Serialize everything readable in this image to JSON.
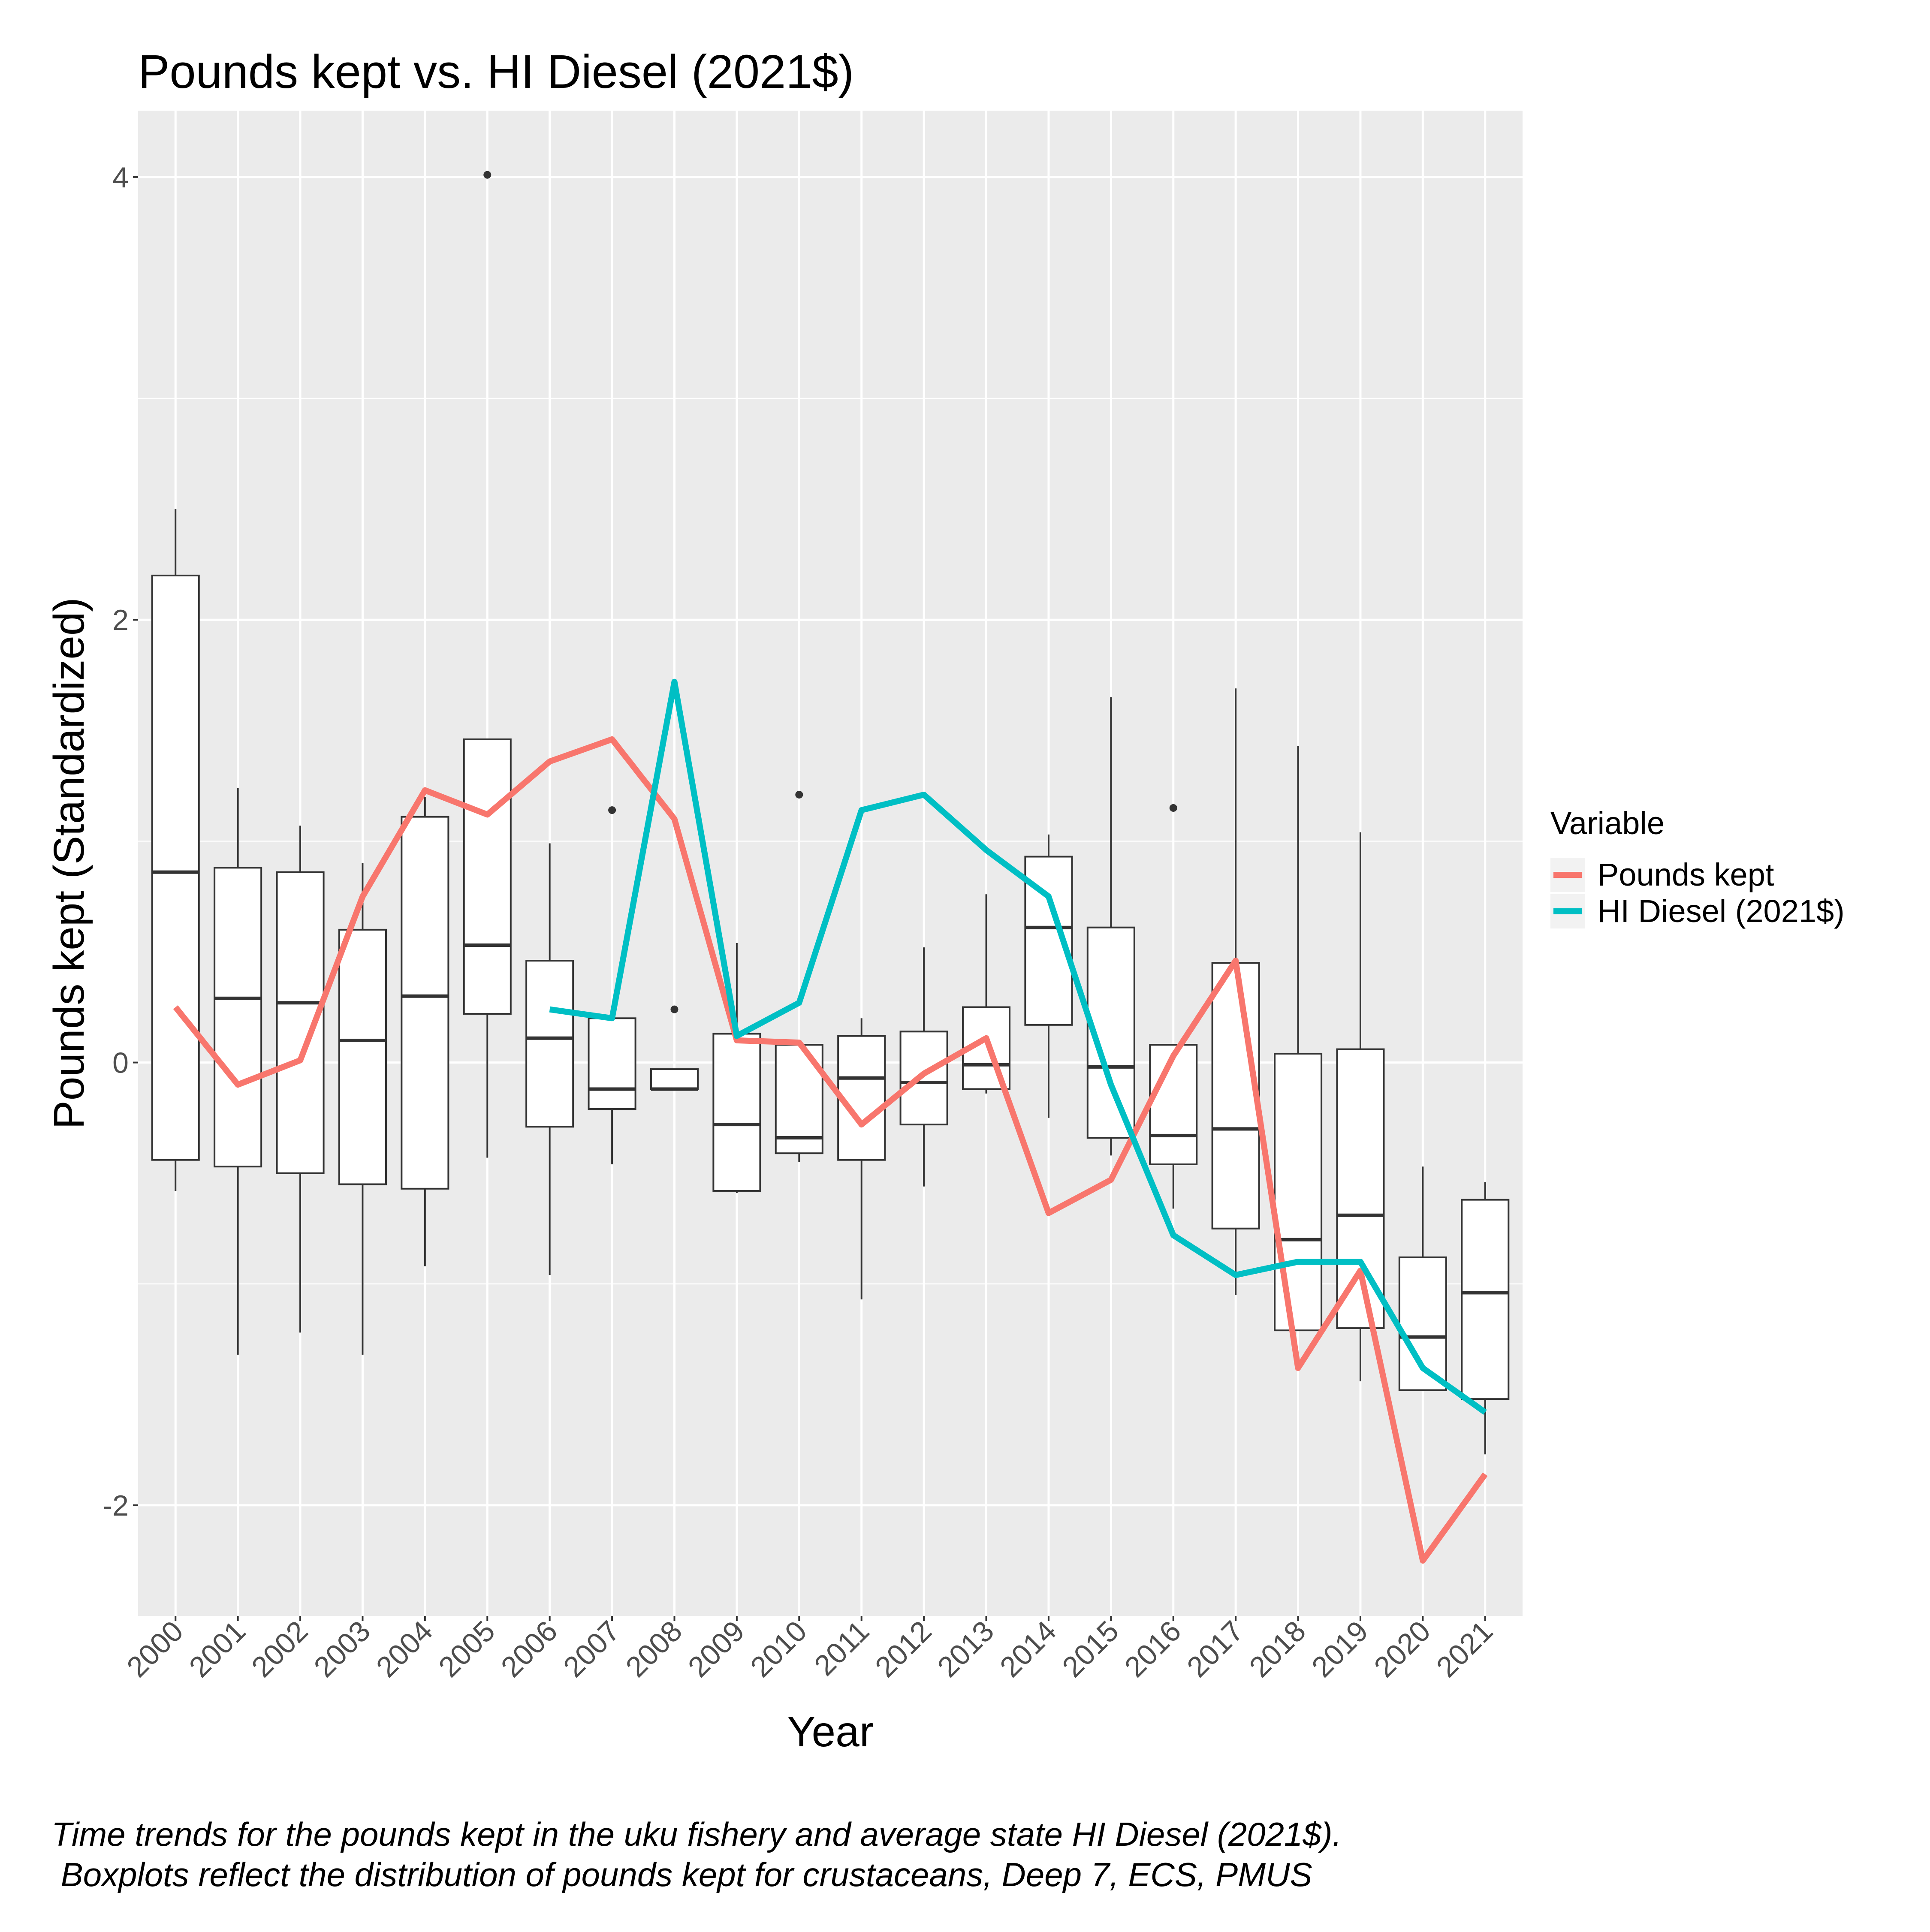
{
  "chart_data": {
    "type": "boxplot+line",
    "title": "Pounds kept vs. HI Diesel (2021$)",
    "xlabel": "Year",
    "ylabel": "Pounds kept (Standardized)",
    "ylim": [
      -2.5,
      4.3
    ],
    "y_ticks": [
      4,
      2,
      0,
      -2
    ],
    "y_tick_labels": [
      "4",
      "2",
      "0",
      "-2"
    ],
    "grid": true,
    "legend_position": "right",
    "legend": {
      "title": "Variable",
      "entries": [
        "Pounds kept",
        "HI Diesel (2021$)"
      ]
    },
    "categories": [
      "2000",
      "2001",
      "2002",
      "2003",
      "2004",
      "2005",
      "2006",
      "2007",
      "2008",
      "2009",
      "2010",
      "2011",
      "2012",
      "2013",
      "2014",
      "2015",
      "2016",
      "2017",
      "2018",
      "2019",
      "2020",
      "2021"
    ],
    "boxes": [
      {
        "year": "2000",
        "lw": -0.58,
        "q1": -0.44,
        "med": 0.86,
        "q3": 2.2,
        "uw": 2.5,
        "outliers": []
      },
      {
        "year": "2001",
        "lw": -1.32,
        "q1": -0.47,
        "med": 0.29,
        "q3": 0.88,
        "uw": 1.24,
        "outliers": []
      },
      {
        "year": "2002",
        "lw": -1.22,
        "q1": -0.5,
        "med": 0.27,
        "q3": 0.86,
        "uw": 1.07,
        "outliers": []
      },
      {
        "year": "2003",
        "lw": -1.32,
        "q1": -0.55,
        "med": 0.1,
        "q3": 0.6,
        "uw": 0.9,
        "outliers": []
      },
      {
        "year": "2004",
        "lw": -0.92,
        "q1": -0.57,
        "med": 0.3,
        "q3": 1.11,
        "uw": 1.2,
        "outliers": []
      },
      {
        "year": "2005",
        "lw": -0.43,
        "q1": 0.22,
        "med": 0.53,
        "q3": 1.46,
        "uw": 1.46,
        "outliers": [
          4.01
        ]
      },
      {
        "year": "2006",
        "lw": -0.96,
        "q1": -0.29,
        "med": 0.11,
        "q3": 0.46,
        "uw": 0.99,
        "outliers": []
      },
      {
        "year": "2007",
        "lw": -0.46,
        "q1": -0.21,
        "med": -0.12,
        "q3": 0.2,
        "uw": 0.2,
        "outliers": [
          1.14
        ]
      },
      {
        "year": "2008",
        "lw": -0.12,
        "q1": -0.12,
        "med": -0.12,
        "q3": -0.03,
        "uw": -0.03,
        "outliers": [
          0.24
        ]
      },
      {
        "year": "2009",
        "lw": -0.59,
        "q1": -0.58,
        "med": -0.28,
        "q3": 0.13,
        "uw": 0.54,
        "outliers": []
      },
      {
        "year": "2010",
        "lw": -0.45,
        "q1": -0.41,
        "med": -0.34,
        "q3": 0.08,
        "uw": 0.08,
        "outliers": [
          1.21
        ]
      },
      {
        "year": "2011",
        "lw": -1.07,
        "q1": -0.44,
        "med": -0.07,
        "q3": 0.12,
        "uw": 0.2,
        "outliers": []
      },
      {
        "year": "2012",
        "lw": -0.56,
        "q1": -0.28,
        "med": -0.09,
        "q3": 0.14,
        "uw": 0.52,
        "outliers": []
      },
      {
        "year": "2013",
        "lw": -0.14,
        "q1": -0.12,
        "med": -0.01,
        "q3": 0.25,
        "uw": 0.76,
        "outliers": []
      },
      {
        "year": "2014",
        "lw": -0.25,
        "q1": 0.17,
        "med": 0.61,
        "q3": 0.93,
        "uw": 1.03,
        "outliers": []
      },
      {
        "year": "2015",
        "lw": -0.42,
        "q1": -0.34,
        "med": -0.02,
        "q3": 0.61,
        "uw": 1.65,
        "outliers": []
      },
      {
        "year": "2016",
        "lw": -0.66,
        "q1": -0.46,
        "med": -0.33,
        "q3": 0.08,
        "uw": 0.08,
        "outliers": [
          1.15
        ]
      },
      {
        "year": "2017",
        "lw": -1.05,
        "q1": -0.75,
        "med": -0.3,
        "q3": 0.45,
        "uw": 1.69,
        "outliers": []
      },
      {
        "year": "2018",
        "lw": -1.21,
        "q1": -1.21,
        "med": -0.8,
        "q3": 0.04,
        "uw": 1.43,
        "outliers": []
      },
      {
        "year": "2019",
        "lw": -1.44,
        "q1": -1.2,
        "med": -0.69,
        "q3": 0.06,
        "uw": 1.04,
        "outliers": []
      },
      {
        "year": "2020",
        "lw": -1.48,
        "q1": -1.48,
        "med": -1.24,
        "q3": -0.88,
        "uw": -0.47,
        "outliers": []
      },
      {
        "year": "2021",
        "lw": -1.77,
        "q1": -1.52,
        "med": -1.04,
        "q3": -0.62,
        "uw": -0.54,
        "outliers": []
      }
    ],
    "series": [
      {
        "name": "Pounds kept",
        "color": "#F8766D",
        "x": [
          "2000",
          "2001",
          "2002",
          "2003",
          "2004",
          "2005",
          "2006",
          "2007",
          "2008",
          "2009",
          "2010",
          "2011",
          "2012",
          "2013",
          "2014",
          "2015",
          "2016",
          "2017",
          "2018",
          "2019",
          "2020",
          "2021"
        ],
        "values": [
          0.25,
          -0.1,
          0.01,
          0.75,
          1.23,
          1.12,
          1.36,
          1.46,
          1.1,
          0.1,
          0.09,
          -0.28,
          -0.05,
          0.11,
          -0.68,
          -0.53,
          0.03,
          0.46,
          -1.38,
          -0.94,
          -2.25,
          -1.86
        ]
      },
      {
        "name": "HI Diesel (2021$)",
        "color": "#00BFC4",
        "x": [
          "2006",
          "2007",
          "2008",
          "2009",
          "2010",
          "2011",
          "2012",
          "2013",
          "2014",
          "2015",
          "2016",
          "2017",
          "2018",
          "2019",
          "2020",
          "2021"
        ],
        "values": [
          0.24,
          0.2,
          1.72,
          0.12,
          0.27,
          1.14,
          1.21,
          0.96,
          0.75,
          -0.1,
          -0.78,
          -0.96,
          -0.9,
          -0.9,
          -1.38,
          -1.58
        ]
      }
    ]
  },
  "caption": {
    "line1": "Time trends for the pounds kept in the uku fishery and average state HI Diesel (2021$).",
    "line2": " Boxplots reflect the distribution of pounds kept for crustaceans, Deep 7, ECS, PMUS"
  }
}
